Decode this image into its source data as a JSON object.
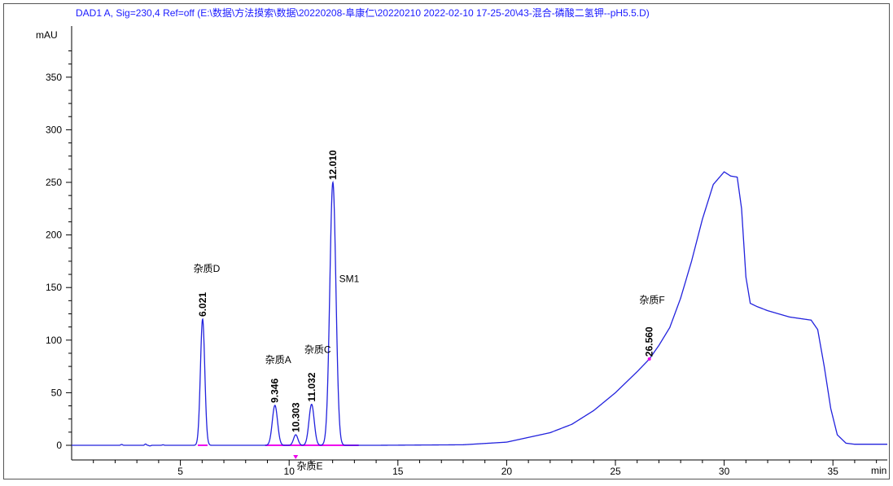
{
  "chart_data": {
    "type": "line",
    "title": "DAD1 A, Sig=230,4 Ref=off (E:\\数据\\方法摸索\\数据\\20220208-阜康仁\\20220210 2022-02-10 17-25-20\\43-混合-磷酸二氢钾--pH5.5.D)",
    "ylabel": "mAU",
    "xlabel": "min",
    "xlim": [
      0,
      37.5
    ],
    "ylim": [
      -10,
      395
    ],
    "xticks": [
      5,
      10,
      15,
      20,
      25,
      30,
      35
    ],
    "yticks": [
      0,
      50,
      100,
      150,
      200,
      250,
      300,
      350
    ],
    "x_tick_labels": [
      "5",
      "10",
      "15",
      "20",
      "25",
      "30",
      "35"
    ],
    "y_tick_labels": [
      "0",
      "50",
      "100",
      "150",
      "200",
      "250",
      "300",
      "350"
    ],
    "colors": {
      "title": "#1a1aff",
      "trace": "#2222dd",
      "baseline_marks": "#ee00ee",
      "axis": "#000000"
    },
    "series": [
      {
        "peaks": [
          {
            "rt": 6.021,
            "height": 120,
            "width": 0.1
          },
          {
            "rt": 9.346,
            "height": 38,
            "width": 0.12
          },
          {
            "rt": 10.303,
            "height": 10,
            "width": 0.1
          },
          {
            "rt": 11.032,
            "height": 39,
            "width": 0.12
          },
          {
            "rt": 12.01,
            "height": 250,
            "width": 0.14
          }
        ],
        "envelope": [
          [
            0,
            0
          ],
          [
            14,
            0
          ],
          [
            18,
            0.5
          ],
          [
            20,
            3
          ],
          [
            22,
            12
          ],
          [
            23,
            20
          ],
          [
            24,
            33
          ],
          [
            25,
            50
          ],
          [
            26,
            70
          ],
          [
            26.56,
            82
          ],
          [
            27,
            95
          ],
          [
            27.5,
            112
          ],
          [
            28,
            140
          ],
          [
            28.5,
            175
          ],
          [
            29,
            215
          ],
          [
            29.5,
            248
          ],
          [
            30,
            260
          ],
          [
            30.3,
            256
          ],
          [
            30.6,
            255
          ],
          [
            30.8,
            225
          ],
          [
            31,
            160
          ],
          [
            31.2,
            135
          ],
          [
            31.5,
            132
          ],
          [
            32,
            128
          ],
          [
            33,
            122
          ],
          [
            34,
            119
          ],
          [
            34.3,
            110
          ],
          [
            34.6,
            75
          ],
          [
            34.9,
            35
          ],
          [
            35.2,
            10
          ],
          [
            35.6,
            2
          ],
          [
            36,
            1
          ],
          [
            37.5,
            1
          ]
        ],
        "noise": [
          [
            2.3,
            0.8
          ],
          [
            3.4,
            1.2
          ],
          [
            3.6,
            -0.6
          ],
          [
            4.2,
            0.5
          ]
        ]
      }
    ],
    "peak_labels": [
      {
        "rt": "6.021",
        "x": 6.021,
        "y": 120
      },
      {
        "rt": "9.346",
        "x": 9.346,
        "y": 38
      },
      {
        "rt": "10.303",
        "x": 10.303,
        "y": 10
      },
      {
        "rt": "11.032",
        "x": 11.032,
        "y": 39
      },
      {
        "rt": "12.010",
        "x": 12.01,
        "y": 250
      },
      {
        "rt": "26.560",
        "x": 26.56,
        "y": 82
      }
    ],
    "annotations": [
      {
        "text": "杂质D",
        "x": 5.6,
        "y": 165
      },
      {
        "text": "杂质A",
        "x": 8.9,
        "y": 78
      },
      {
        "text": "杂质C",
        "x": 10.7,
        "y": 88
      },
      {
        "text": "SM1",
        "x": 12.3,
        "y": 155
      },
      {
        "text": "杂质F",
        "x": 26.1,
        "y": 135
      },
      {
        "text": "杂质E",
        "x": 10.35,
        "y": -23
      }
    ]
  }
}
